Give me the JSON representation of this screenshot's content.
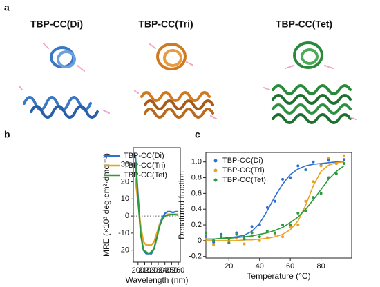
{
  "figure": {
    "panel_labels": [
      "a",
      "b",
      "c"
    ],
    "structures": [
      "TBP-CC(Di)",
      "TBP-CC(Tri)",
      "TBP-CC(Tet)"
    ]
  },
  "chart_data": [
    {
      "type": "line",
      "xlabel": "Wavelength (nm)",
      "ylabel": "MRE (×10³ deg·cm²·dmol⁻¹)",
      "x": [
        196,
        200,
        204,
        208,
        212,
        216,
        220,
        224,
        228,
        232,
        236,
        240,
        244,
        248,
        252,
        256,
        260
      ],
      "series": [
        {
          "name": "TBP-CC(Di)",
          "color": "#2f6fd0",
          "values": [
            36,
            12,
            -10,
            -20,
            -22,
            -22,
            -22,
            -19,
            -12,
            -5,
            -1,
            1.5,
            2.5,
            2.5,
            2,
            2.5,
            2.5
          ]
        },
        {
          "name": "TBP-CC(Tri)",
          "color": "#e8a21e",
          "values": [
            22,
            8,
            -6,
            -15,
            -17,
            -17,
            -17,
            -15,
            -10,
            -5,
            -2,
            0,
            1,
            1,
            1,
            1,
            1
          ]
        },
        {
          "name": "TBP-CC(Tet)",
          "color": "#2e9a3e",
          "values": [
            34,
            10,
            -11,
            -20,
            -21,
            -22,
            -21,
            -19,
            -13,
            -6,
            -2,
            0,
            0.5,
            0.8,
            0.8,
            0.8,
            0.5
          ]
        }
      ],
      "reference_line": 0,
      "xlim": [
        193,
        263
      ],
      "xticks": [
        200,
        210,
        220,
        230,
        240,
        250,
        260
      ],
      "ylim": [
        -27,
        40
      ],
      "yticks": [
        -20,
        -10,
        0,
        10,
        20,
        30
      ],
      "legend": "upper right"
    },
    {
      "type": "scatter",
      "xlabel": "Temperature (°C)",
      "ylabel": "Denatured fraction",
      "x": [
        5,
        10,
        15,
        20,
        25,
        30,
        35,
        40,
        45,
        50,
        55,
        60,
        65,
        70,
        75,
        80,
        85,
        90,
        95
      ],
      "series": [
        {
          "name": "TBP-CC(Di)",
          "color": "#2f6fd0",
          "values": [
            0.05,
            -0.02,
            0.08,
            0,
            0.1,
            0.05,
            0.18,
            0.2,
            0.42,
            0.5,
            0.78,
            0.8,
            0.95,
            0.9,
            1,
            0.96,
            1.02,
            0.98,
            1.03
          ],
          "fit": [
            0.02,
            0.02,
            0.03,
            0.04,
            0.05,
            0.07,
            0.12,
            0.22,
            0.38,
            0.56,
            0.72,
            0.84,
            0.91,
            0.95,
            0.97,
            0.98,
            0.99,
            1,
            1
          ]
        },
        {
          "name": "TBP-CC(Tri)",
          "color": "#e8a21e",
          "values": [
            0.02,
            -0.05,
            0.05,
            -0.02,
            0.03,
            -0.04,
            0.06,
            0,
            0.04,
            0.08,
            0.05,
            0.18,
            0.2,
            0.5,
            0.75,
            0.95,
            1.05,
            0.98,
            1.08
          ],
          "fit": [
            0,
            0,
            0,
            0,
            0,
            0.01,
            0.01,
            0.02,
            0.03,
            0.05,
            0.08,
            0.14,
            0.25,
            0.45,
            0.7,
            0.88,
            0.96,
            0.99,
            1
          ]
        },
        {
          "name": "TBP-CC(Tet)",
          "color": "#2e9a3e",
          "values": [
            0.1,
            0,
            0.05,
            -0.03,
            0.08,
            0.02,
            0.1,
            0.05,
            0.12,
            0.1,
            0.2,
            0.2,
            0.35,
            0.38,
            0.55,
            0.6,
            0.8,
            0.85,
            0.98
          ],
          "fit": [
            0.02,
            0.02,
            0.03,
            0.03,
            0.04,
            0.05,
            0.06,
            0.08,
            0.1,
            0.13,
            0.17,
            0.23,
            0.3,
            0.4,
            0.52,
            0.65,
            0.78,
            0.88,
            0.95
          ]
        }
      ],
      "xlim": [
        5,
        100
      ],
      "xticks": [
        20,
        40,
        60,
        80
      ],
      "ylim": [
        -0.22,
        1.12
      ],
      "yticks": [
        -0.2,
        0,
        0.2,
        0.4,
        0.6,
        0.8,
        {
          "value": 1.0,
          "label": "1.0"
        }
      ],
      "legend": "upper left"
    }
  ]
}
